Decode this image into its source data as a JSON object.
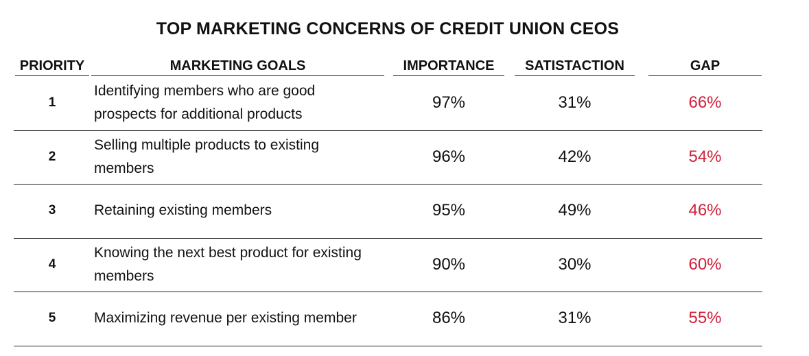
{
  "title": "TOP MARKETING CONCERNS OF CREDIT UNION CEOS",
  "table": {
    "headers": [
      "PRIORITY",
      "MARKETING GOALS",
      "IMPORTANCE",
      "SATISTACTION",
      "GAP"
    ],
    "rows": [
      [
        "1",
        "Identifying members who are good prospects for additional products",
        "97%",
        "31%",
        "66%"
      ],
      [
        "2",
        "Selling multiple products to existing members",
        "96%",
        "42%",
        "54%"
      ],
      [
        "3",
        "Retaining existing members",
        "95%",
        "49%",
        "46%"
      ],
      [
        "4",
        "Knowing the next best product for existing members",
        "90%",
        "30%",
        "60%"
      ],
      [
        "5",
        "Maximizing revenue per existing member",
        "86%",
        "31%",
        "55%"
      ]
    ]
  }
}
